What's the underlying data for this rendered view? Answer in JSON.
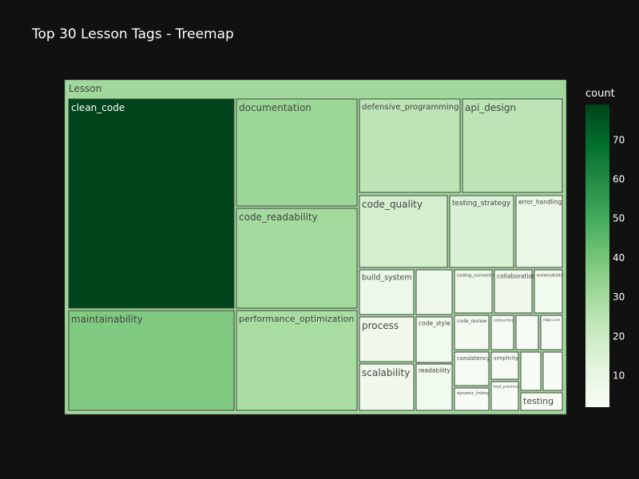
{
  "title": "Top 30 Lesson Tags - Treemap",
  "chart_data": {
    "type": "treemap",
    "root": {
      "label": "Lesson",
      "value": 752
    },
    "tags": [
      {
        "label": "clean_code",
        "value": 79
      },
      {
        "label": "maintainability",
        "value": 38
      },
      {
        "label": "documentation",
        "value": 32
      },
      {
        "label": "code_readability",
        "value": 30
      },
      {
        "label": "performance_optimization",
        "value": 29
      },
      {
        "label": "defensive_programming",
        "value": 24
      },
      {
        "label": "api_design",
        "value": 24
      },
      {
        "label": "code_quality",
        "value": 17
      },
      {
        "label": "testing_strategy",
        "value": 15
      },
      {
        "label": "error_handling",
        "value": 9
      },
      {
        "label": "build_system",
        "value": 8
      },
      {
        "label": "",
        "value": 7
      },
      {
        "label": "coding_conventions",
        "value": 7
      },
      {
        "label": "collaboration",
        "value": 6
      },
      {
        "label": "extensibility",
        "value": 5
      },
      {
        "label": "process",
        "value": 6
      },
      {
        "label": "code_style",
        "value": 5
      },
      {
        "label": "code_review",
        "value": 4
      },
      {
        "label": "onboarding",
        "value": 3
      },
      {
        "label": "",
        "value": 3
      },
      {
        "label": "edge_case",
        "value": 3
      },
      {
        "label": "scalability",
        "value": 6
      },
      {
        "label": "readability",
        "value": 5
      },
      {
        "label": "consistency",
        "value": 3
      },
      {
        "label": "simplicity",
        "value": 3
      },
      {
        "label": "",
        "value": 2
      },
      {
        "label": "",
        "value": 2
      },
      {
        "label": "dynamic_linking",
        "value": 2
      },
      {
        "label": "best_practices",
        "value": 2
      },
      {
        "label": "testing",
        "value": 2
      }
    ],
    "colorbar": {
      "title": "count",
      "ticks": [
        10,
        20,
        30,
        40,
        50,
        60,
        70
      ],
      "min": 2,
      "max": 79,
      "colorscale": [
        "#f7fcf5",
        "#e5f5e0",
        "#c7e9c0",
        "#a1d99b",
        "#74c476",
        "#41ab5d",
        "#238b45",
        "#006d2c",
        "#00441b"
      ]
    }
  }
}
